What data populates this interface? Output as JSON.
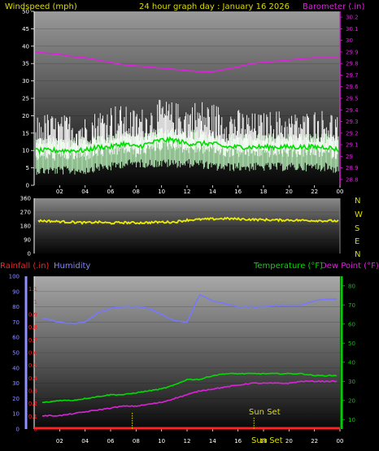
{
  "header": {
    "left": "Windspeed (mph)",
    "center": "24 hour graph day : January 16 2026",
    "right": "Barometer (.in)"
  },
  "colors": {
    "windspeed": "#ffffff",
    "wind_avg": "#00dd00",
    "wind_gust_band": "#b8f0b8",
    "barometer": "#dd22dd",
    "direction": "#eeee00",
    "humidity": "#7777ff",
    "temperature": "#00dd00",
    "dewpoint": "#dd22dd",
    "rainfall": "#ff2222",
    "sunset": "#dddd00",
    "axis_left": "#9090ff",
    "axis_right": "#00cc00",
    "axis_baro": "#dd22dd"
  },
  "lower_labels": {
    "rainfall": "Rainfall (.in)",
    "humidity": "Humidity",
    "temperature": "Temperature (°F)",
    "dewpoint": "Dew Point (°F)",
    "sunset_top": "Sun Set",
    "sunset_bottom": "Sun Set"
  },
  "compass": [
    "N",
    "W",
    "S",
    "E",
    "N"
  ],
  "chart_data": [
    {
      "type": "line",
      "name": "wind-barometer",
      "x": [
        0,
        1,
        2,
        3,
        4,
        5,
        6,
        7,
        8,
        9,
        10,
        11,
        12,
        13,
        14,
        15,
        16,
        17,
        18,
        19,
        20,
        21,
        22,
        23,
        24
      ],
      "xticks": [
        "02",
        "04",
        "06",
        "08",
        "10",
        "12",
        "14",
        "16",
        "18",
        "20",
        "22",
        "00"
      ],
      "left_axis": {
        "ylim": [
          0,
          50
        ],
        "ticks": [
          "0",
          "5",
          "10",
          "15",
          "20",
          "25",
          "30",
          "35",
          "40",
          "45",
          "50"
        ]
      },
      "right_axis": {
        "ylim": [
          28.75,
          30.25
        ],
        "ticks": [
          "28.8",
          "28.9",
          "29",
          "29.1",
          "29.2",
          "29.3",
          "29.4",
          "29.5",
          "29.6",
          "29.7",
          "29.8",
          "29.9",
          "30",
          "30.1",
          "30.2"
        ]
      },
      "series": [
        {
          "name": "Windspeed",
          "values": [
            14,
            15,
            14,
            15,
            14,
            16,
            18,
            17,
            16,
            17,
            19,
            18,
            18,
            19,
            18,
            17,
            16,
            15,
            15,
            16,
            15,
            15,
            16,
            16,
            15
          ]
        },
        {
          "values": [
            10,
            10,
            10,
            10,
            10,
            11,
            11,
            12,
            11,
            12,
            13,
            13,
            12,
            12,
            12,
            11,
            11,
            11,
            11,
            11,
            11,
            11,
            11,
            11,
            10
          ]
        },
        {
          "values": [
            7,
            7,
            7,
            7,
            7,
            8,
            8,
            9,
            9,
            9,
            9,
            9,
            9,
            9,
            8,
            8,
            8,
            8,
            8,
            8,
            8,
            8,
            8,
            8,
            7
          ]
        },
        {
          "name": "Barometer",
          "values": [
            29.9,
            29.89,
            29.88,
            29.86,
            29.85,
            29.83,
            29.81,
            29.79,
            29.78,
            29.77,
            29.76,
            29.75,
            29.74,
            29.73,
            29.73,
            29.75,
            29.77,
            29.8,
            29.81,
            29.82,
            29.83,
            29.84,
            29.85,
            29.85,
            29.85
          ]
        }
      ]
    },
    {
      "type": "line",
      "name": "wind-direction",
      "x": [
        0,
        1,
        2,
        3,
        4,
        5,
        6,
        7,
        8,
        9,
        10,
        11,
        12,
        13,
        14,
        15,
        16,
        17,
        18,
        19,
        20,
        21,
        22,
        23,
        24
      ],
      "left_axis": {
        "ylim": [
          0,
          360
        ],
        "ticks": [
          "0",
          "90",
          "180",
          "270",
          "360"
        ]
      },
      "series": [
        {
          "name": "Direction",
          "values": [
            215,
            212,
            208,
            205,
            200,
            205,
            198,
            202,
            200,
            202,
            205,
            205,
            218,
            222,
            225,
            228,
            225,
            222,
            220,
            218,
            218,
            216,
            215,
            213,
            212
          ]
        }
      ]
    },
    {
      "type": "line",
      "name": "temperature-humidity",
      "x": [
        0,
        1,
        2,
        3,
        4,
        5,
        6,
        7,
        8,
        9,
        10,
        11,
        12,
        13,
        14,
        15,
        16,
        17,
        18,
        19,
        20,
        21,
        22,
        23,
        24
      ],
      "xticks": [
        "02",
        "04",
        "06",
        "08",
        "10",
        "12",
        "14",
        "16",
        "18",
        "20",
        "22",
        "00"
      ],
      "left_axis": {
        "ylim": [
          0,
          100
        ],
        "ticks": [
          "0",
          "10",
          "20",
          "30",
          "40",
          "50",
          "60",
          "70",
          "80",
          "90",
          "100"
        ]
      },
      "rain_axis": {
        "ylim": [
          0,
          1.2
        ],
        "ticks": [
          "0",
          "0.1",
          "0.2",
          "0.3",
          "0.4",
          "0.5",
          "0.6",
          "0.7",
          "0.8",
          "0.9",
          "1",
          "1.1"
        ]
      },
      "right_axis": {
        "ylim": [
          5,
          85
        ],
        "ticks": [
          "10",
          "20",
          "30",
          "40",
          "50",
          "60",
          "70",
          "80"
        ]
      },
      "series": [
        {
          "name": "Humidity",
          "values": [
            73,
            72,
            70,
            69,
            70,
            76,
            79,
            80,
            80,
            79,
            75,
            71,
            70,
            88,
            84,
            82,
            80,
            80,
            80,
            81,
            81,
            81,
            84,
            85,
            85
          ]
        },
        {
          "name": "Temperature",
          "values": [
            19,
            19,
            20,
            20,
            21,
            22,
            23,
            23,
            24,
            25,
            26,
            28,
            31,
            31,
            33,
            34,
            34,
            34,
            34,
            34,
            34,
            34,
            33,
            33,
            33
          ]
        },
        {
          "name": "Dew Point",
          "values": [
            12,
            12,
            12,
            13,
            14,
            15,
            16,
            17,
            17,
            18,
            19,
            21,
            23,
            25,
            26,
            27,
            28,
            29,
            29,
            29,
            29,
            30,
            30,
            30,
            30
          ]
        },
        {
          "name": "Rainfall",
          "values": [
            0,
            0,
            0,
            0,
            0,
            0,
            0,
            0,
            0,
            0,
            0,
            0,
            0,
            0,
            0,
            0,
            0,
            0,
            0,
            0,
            0,
            0,
            0,
            0,
            0
          ]
        }
      ],
      "sunset_hour": 17.25
    }
  ]
}
